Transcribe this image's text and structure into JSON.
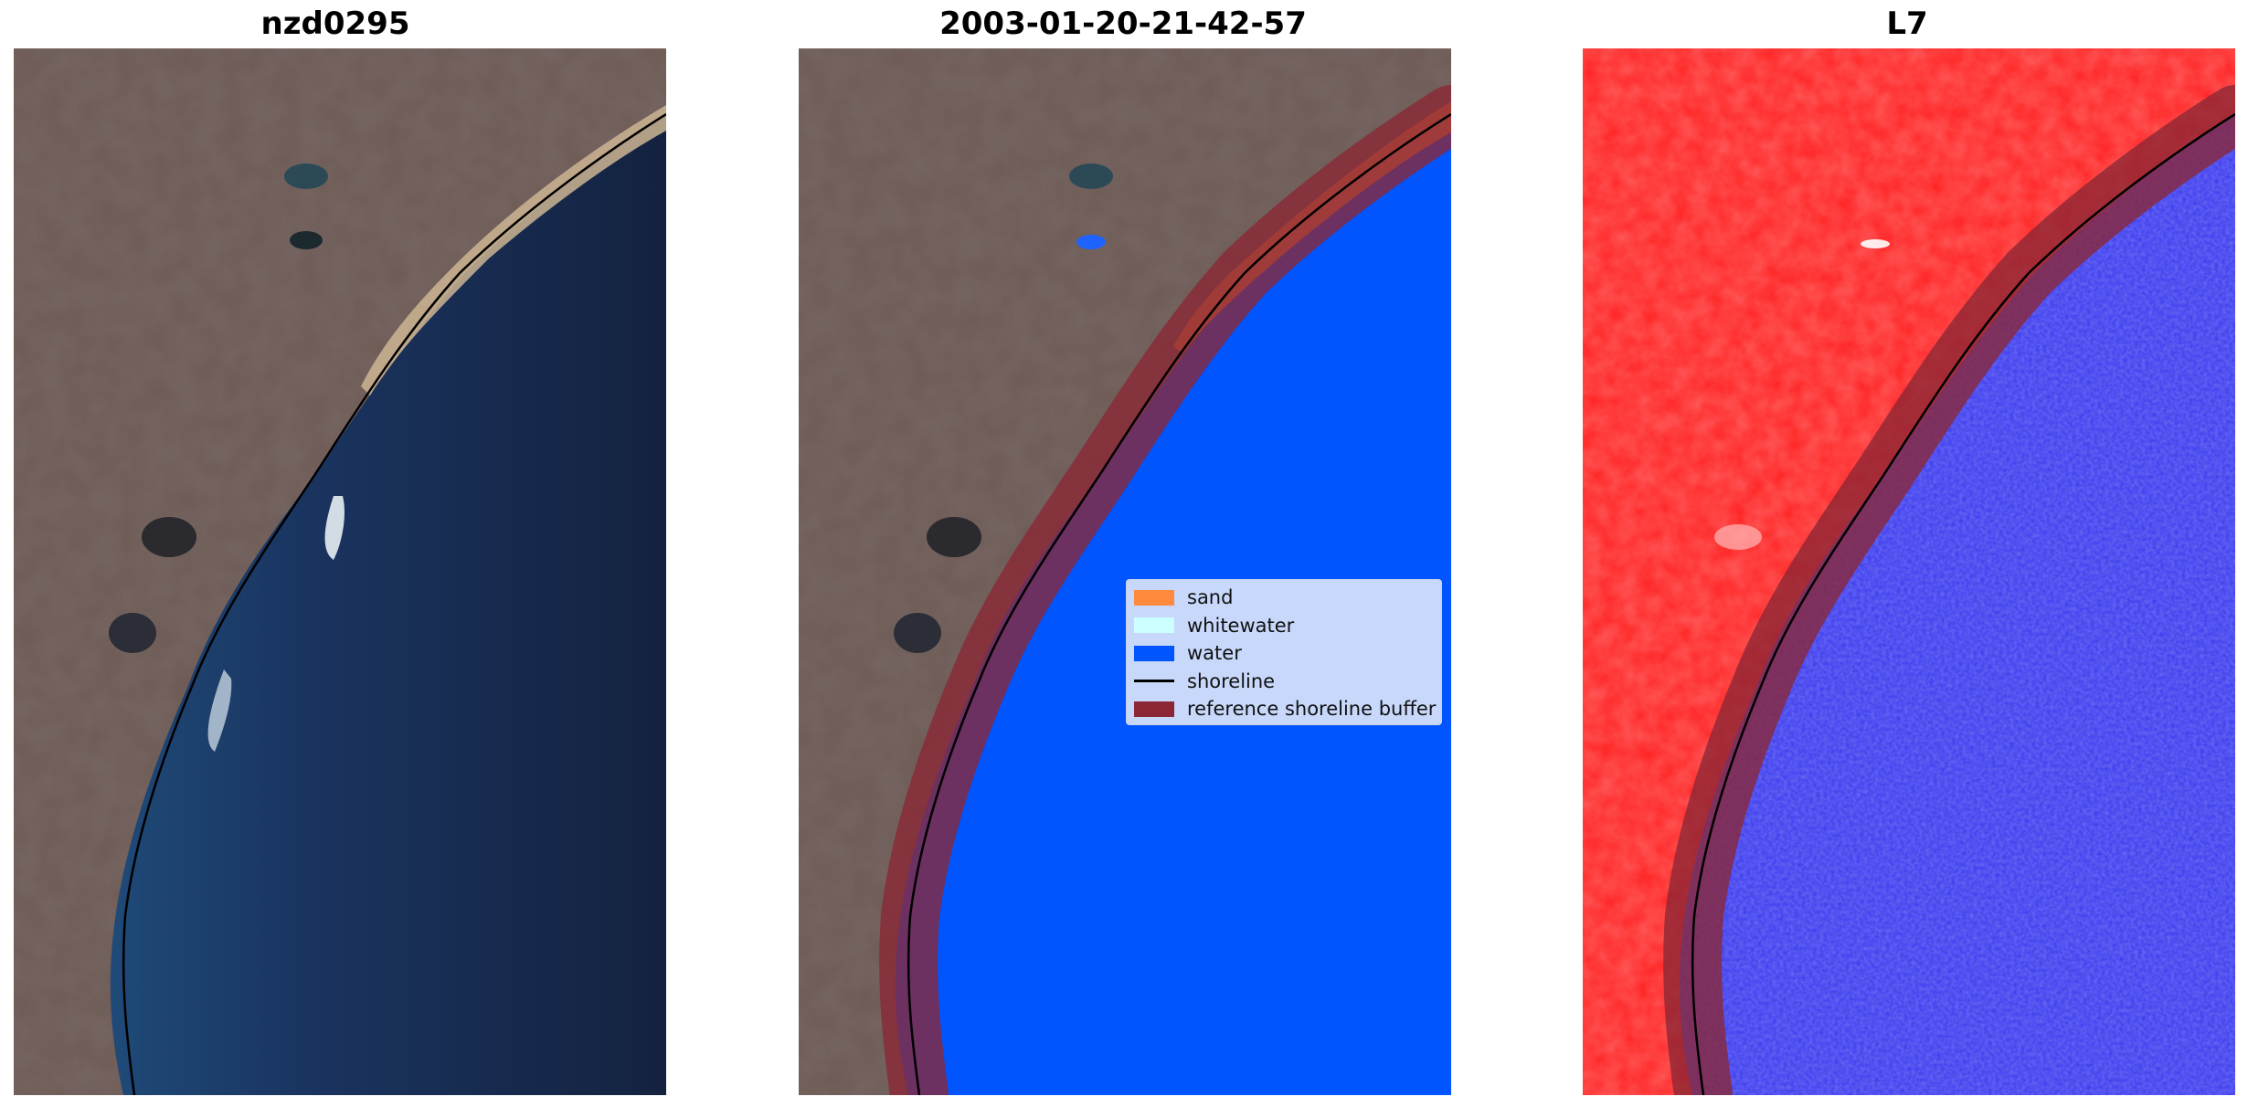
{
  "panels": [
    {
      "title": "nzd0295",
      "view": "true-color-rgb"
    },
    {
      "title": "2003-01-20-21-42-57",
      "view": "classified-overlay"
    },
    {
      "title": "L7",
      "view": "water-index"
    }
  ],
  "legend": {
    "items": [
      {
        "label": "sand",
        "kind": "patch",
        "color": "#ff8a3d"
      },
      {
        "label": "whitewater",
        "kind": "patch",
        "color": "#ccffff"
      },
      {
        "label": "water",
        "kind": "patch",
        "color": "#0055ff"
      },
      {
        "label": "shoreline",
        "kind": "line",
        "color": "#000000"
      },
      {
        "label": "reference shoreline buffer",
        "kind": "patch",
        "color": "#8b2635"
      }
    ]
  },
  "colors": {
    "land": "#6e5a55",
    "land_dark": "#4f423f",
    "ocean": "#15254a",
    "ocean_near": "#1f4a78",
    "index_land": "#ff2020",
    "index_water": "#3838ee"
  }
}
